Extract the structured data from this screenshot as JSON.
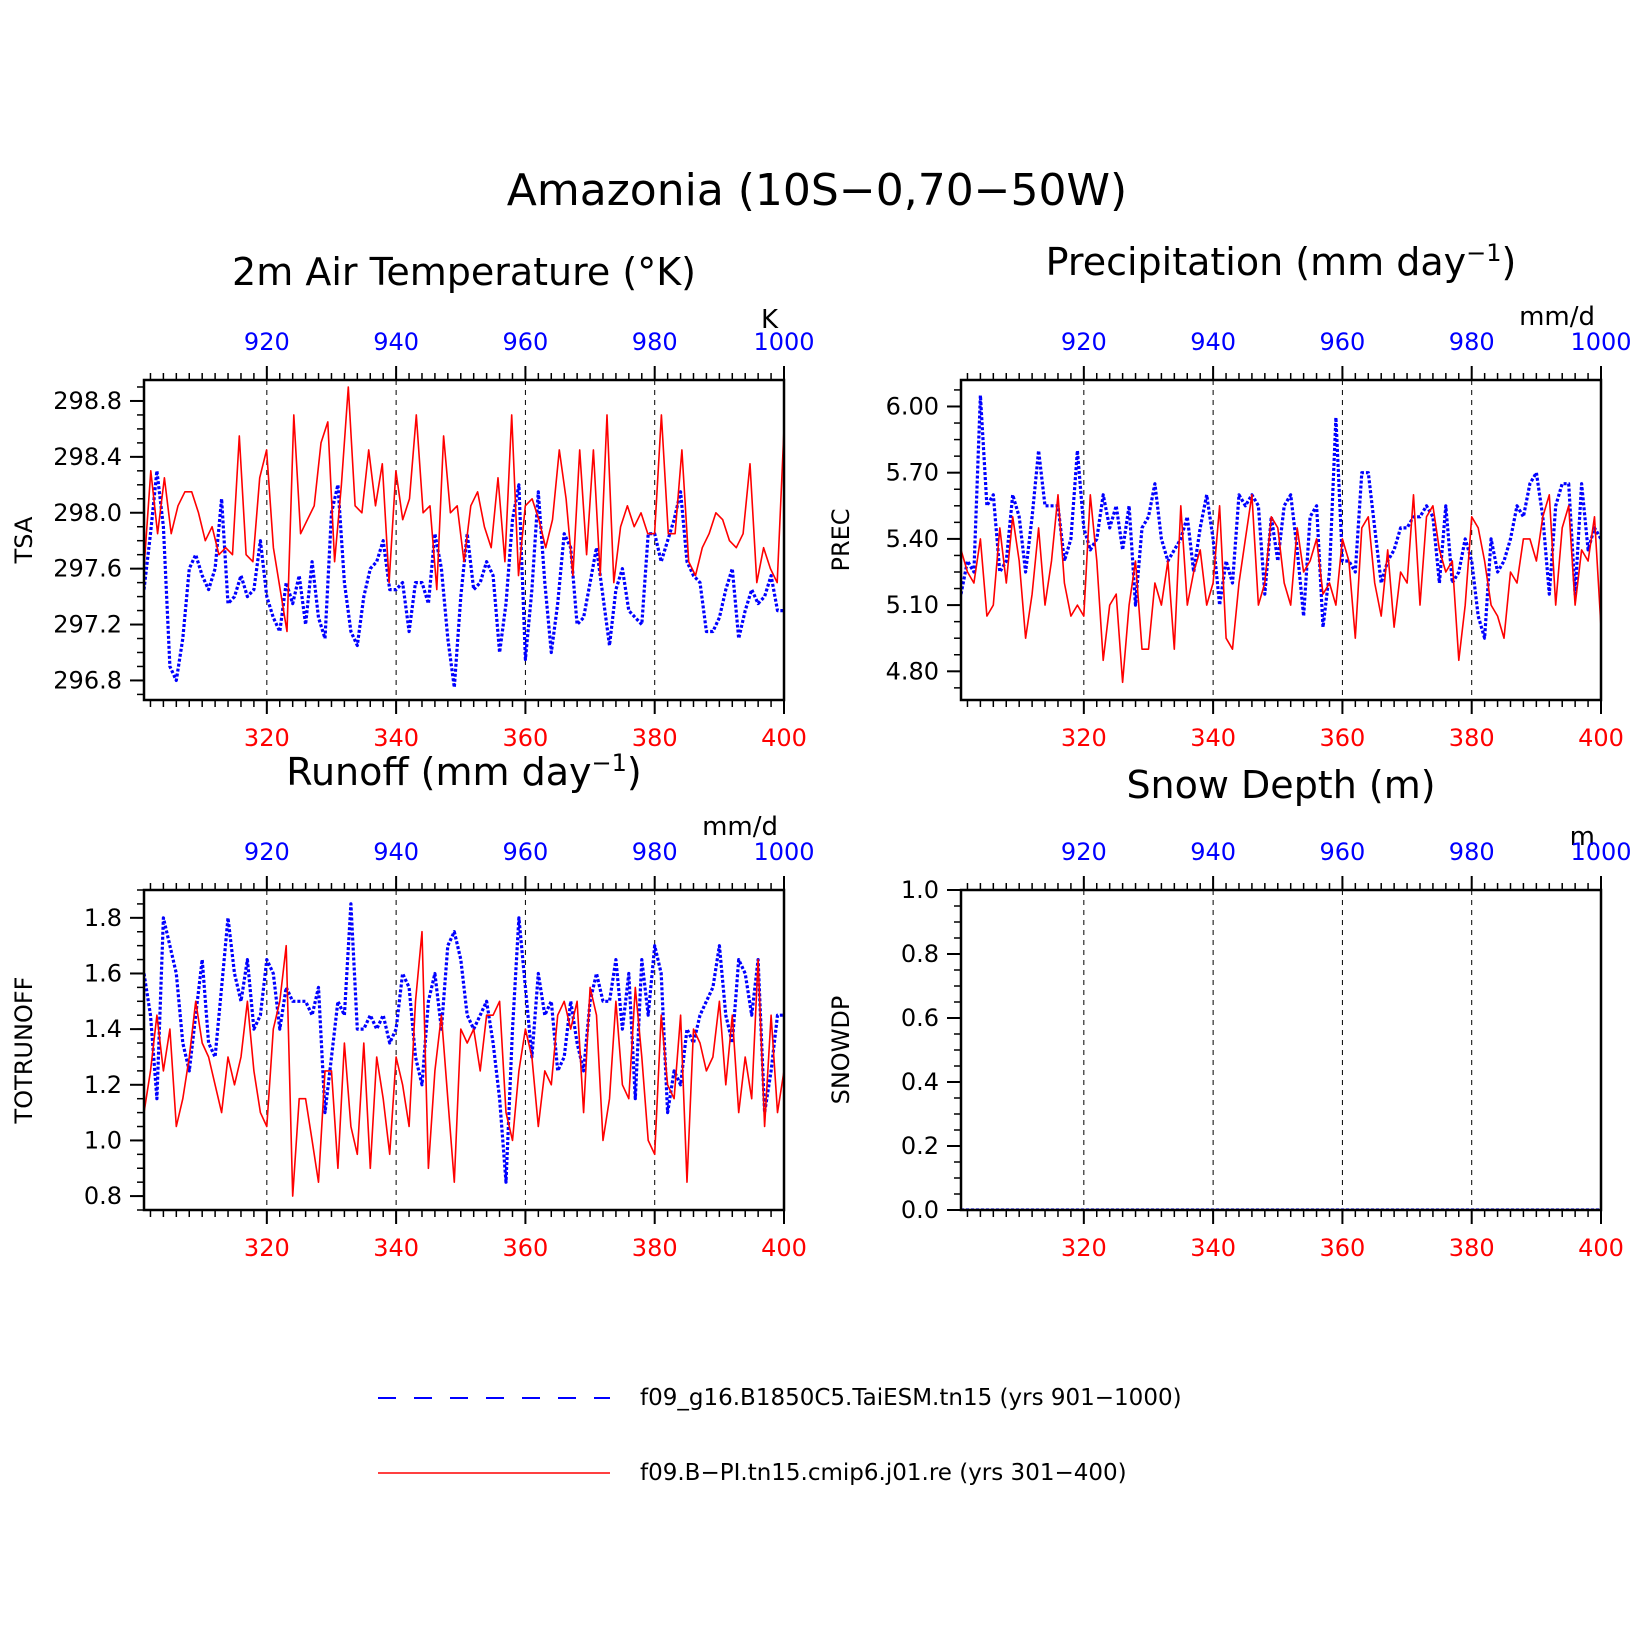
{
  "page": {
    "title": "Amazonia (10S−0,70−50W)"
  },
  "colors": {
    "series_a": "#0000ff",
    "series_b": "#ff0000",
    "axis": "#000000"
  },
  "legend": {
    "entries": [
      {
        "label": "f09_g16.B1850C5.TaiESM.tn15 (yrs 901−1000)",
        "color": "#0000ff",
        "style": "dashed"
      },
      {
        "label": "f09.B−PI.tn15.cmip6.j01.re (yrs 301−400)",
        "color": "#ff0000",
        "style": "solid"
      }
    ]
  },
  "chart_data": [
    {
      "type": "line",
      "title_main": "2m Air Temperature (°K)",
      "ylabel": "TSA",
      "units": "K",
      "ylim": [
        296.66,
        298.95
      ],
      "yticks": [
        296.8,
        297.2,
        297.6,
        298.0,
        298.4,
        298.8
      ],
      "ytick_labels": [
        "296.8",
        "297.2",
        "297.6",
        "298.0",
        "298.4",
        "298.8"
      ],
      "x_bottom": {
        "range": [
          301,
          400
        ],
        "ticks": [
          320,
          340,
          360,
          380,
          400
        ],
        "labels": [
          "320",
          "340",
          "360",
          "380",
          "400"
        ]
      },
      "x_top": {
        "range": [
          901,
          1000
        ],
        "ticks": [
          920,
          940,
          960,
          980,
          1000
        ],
        "labels": [
          "920",
          "940",
          "960",
          "980",
          "1000"
        ]
      },
      "grid": "vertical dashed at major x ticks",
      "series": [
        {
          "color": "#0000ff",
          "style": "dotted",
          "values": [
            297.45,
            297.85,
            298.3,
            297.9,
            296.9,
            296.8,
            297.1,
            297.6,
            297.7,
            297.55,
            297.45,
            297.6,
            298.1,
            297.35,
            297.4,
            297.55,
            297.4,
            297.45,
            297.8,
            297.4,
            297.25,
            297.15,
            297.5,
            297.35,
            297.55,
            297.2,
            297.65,
            297.25,
            297.1,
            298.0,
            298.2,
            297.5,
            297.15,
            297.05,
            297.4,
            297.6,
            297.65,
            297.8,
            297.45,
            297.45,
            297.5,
            297.15,
            297.5,
            297.5,
            297.35,
            297.85,
            297.6,
            297.1,
            296.75,
            297.4,
            297.85,
            297.45,
            297.5,
            297.65,
            297.55,
            297.0,
            297.35,
            297.95,
            298.2,
            296.95,
            297.45,
            298.15,
            297.5,
            297.0,
            297.35,
            297.85,
            297.75,
            297.2,
            297.25,
            297.5,
            297.75,
            297.4,
            297.05,
            297.45,
            297.6,
            297.3,
            297.25,
            297.2,
            297.85,
            297.85,
            297.65,
            297.8,
            297.95,
            298.15,
            297.65,
            297.55,
            297.5,
            297.15,
            297.15,
            297.25,
            297.45,
            297.6,
            297.1,
            297.3,
            297.45,
            297.35,
            297.4,
            297.55,
            297.3,
            297.3
          ]
        },
        {
          "color": "#ff0000",
          "style": "solid",
          "values": [
            297.6,
            298.3,
            297.85,
            298.25,
            297.85,
            298.05,
            298.15,
            298.15,
            298.0,
            297.8,
            297.9,
            297.7,
            297.75,
            297.7,
            298.55,
            297.7,
            297.65,
            298.25,
            298.45,
            297.75,
            297.45,
            297.15,
            298.7,
            297.85,
            297.95,
            298.05,
            298.5,
            298.65,
            297.65,
            298.2,
            298.9,
            298.05,
            298.0,
            298.45,
            298.05,
            298.35,
            297.5,
            298.3,
            297.95,
            298.1,
            298.7,
            298.0,
            298.05,
            297.45,
            298.55,
            298.0,
            298.05,
            297.65,
            298.05,
            298.15,
            297.9,
            297.75,
            298.25,
            297.65,
            298.7,
            297.55,
            298.05,
            298.1,
            297.95,
            297.75,
            297.95,
            298.45,
            298.1,
            297.55,
            298.45,
            297.7,
            298.45,
            297.55,
            298.7,
            297.5,
            297.9,
            298.05,
            297.9,
            298.0,
            297.85,
            297.85,
            298.7,
            297.85,
            297.85,
            298.45,
            297.65,
            297.55,
            297.75,
            297.85,
            298.0,
            297.95,
            297.8,
            297.75,
            297.85,
            298.35,
            297.5,
            297.75,
            297.6,
            297.5,
            298.6
          ]
        }
      ]
    },
    {
      "type": "line",
      "title_main": "Precipitation (mm day",
      "title_sup": "−1",
      "title_end": ")",
      "ylabel": "PREC",
      "units": "mm/d",
      "ylim": [
        4.67,
        6.12
      ],
      "yticks": [
        4.8,
        5.1,
        5.4,
        5.7,
        6.0
      ],
      "ytick_labels": [
        "4.80",
        "5.10",
        "5.40",
        "5.70",
        "6.00"
      ],
      "x_bottom": {
        "range": [
          301,
          400
        ],
        "ticks": [
          320,
          340,
          360,
          380,
          400
        ],
        "labels": [
          "320",
          "340",
          "360",
          "380",
          "400"
        ]
      },
      "x_top": {
        "range": [
          901,
          1000
        ],
        "ticks": [
          920,
          940,
          960,
          980,
          1000
        ],
        "labels": [
          "920",
          "940",
          "960",
          "980",
          "1000"
        ]
      },
      "grid": "vertical dashed at major x ticks",
      "series": [
        {
          "color": "#0000ff",
          "style": "dotted",
          "values": [
            5.15,
            5.3,
            5.25,
            6.05,
            5.55,
            5.6,
            5.25,
            5.3,
            5.6,
            5.5,
            5.25,
            5.5,
            5.8,
            5.55,
            5.55,
            5.55,
            5.3,
            5.4,
            5.8,
            5.45,
            5.35,
            5.4,
            5.6,
            5.45,
            5.55,
            5.35,
            5.55,
            5.1,
            5.45,
            5.5,
            5.65,
            5.4,
            5.3,
            5.35,
            5.4,
            5.5,
            5.25,
            5.45,
            5.6,
            5.4,
            5.1,
            5.3,
            5.2,
            5.6,
            5.55,
            5.6,
            5.55,
            5.15,
            5.5,
            5.3,
            5.55,
            5.6,
            5.35,
            5.05,
            5.5,
            5.55,
            5.0,
            5.25,
            5.95,
            5.3,
            5.3,
            5.25,
            5.7,
            5.7,
            5.45,
            5.2,
            5.3,
            5.35,
            5.45,
            5.45,
            5.5,
            5.5,
            5.55,
            5.5,
            5.2,
            5.55,
            5.2,
            5.25,
            5.4,
            5.3,
            5.05,
            4.95,
            5.4,
            5.25,
            5.3,
            5.4,
            5.55,
            5.5,
            5.65,
            5.7,
            5.5,
            5.15,
            5.55,
            5.65,
            5.65,
            5.15,
            5.65,
            5.35,
            5.45,
            5.4
          ]
        },
        {
          "color": "#ff0000",
          "style": "solid",
          "values": [
            5.35,
            5.25,
            5.2,
            5.4,
            5.05,
            5.1,
            5.45,
            5.2,
            5.5,
            5.3,
            4.95,
            5.15,
            5.45,
            5.1,
            5.3,
            5.6,
            5.2,
            5.05,
            5.1,
            5.05,
            5.6,
            5.3,
            4.85,
            5.1,
            5.15,
            4.75,
            5.1,
            5.3,
            4.9,
            4.9,
            5.2,
            5.1,
            5.3,
            4.9,
            5.55,
            5.1,
            5.25,
            5.35,
            5.1,
            5.2,
            5.55,
            4.95,
            4.9,
            5.2,
            5.4,
            5.6,
            5.1,
            5.2,
            5.5,
            5.45,
            5.2,
            5.1,
            5.45,
            5.25,
            5.3,
            5.4,
            5.15,
            5.2,
            5.1,
            5.4,
            5.3,
            4.95,
            5.45,
            5.5,
            5.2,
            5.05,
            5.35,
            5.0,
            5.25,
            5.2,
            5.6,
            5.1,
            5.5,
            5.55,
            5.35,
            5.25,
            5.3,
            4.85,
            5.1,
            5.5,
            5.45,
            5.3,
            5.1,
            5.05,
            4.95,
            5.25,
            5.2,
            5.4,
            5.4,
            5.3,
            5.5,
            5.6,
            5.1,
            5.45,
            5.55,
            5.1,
            5.35,
            5.3,
            5.5,
            5.0
          ]
        }
      ]
    },
    {
      "type": "line",
      "title_main": "Runoff (mm day",
      "title_sup": "−1",
      "title_end": ")",
      "ylabel": "TOTRUNOFF",
      "units": "mm/d",
      "ylim": [
        0.75,
        1.9
      ],
      "yticks": [
        0.8,
        1.0,
        1.2,
        1.4,
        1.6,
        1.8
      ],
      "ytick_labels": [
        "0.8",
        "1.0",
        "1.2",
        "1.4",
        "1.6",
        "1.8"
      ],
      "x_bottom": {
        "range": [
          301,
          400
        ],
        "ticks": [
          320,
          340,
          360,
          380,
          400
        ],
        "labels": [
          "320",
          "340",
          "360",
          "380",
          "400"
        ]
      },
      "x_top": {
        "range": [
          901,
          1000
        ],
        "ticks": [
          920,
          940,
          960,
          980,
          1000
        ],
        "labels": [
          "920",
          "940",
          "960",
          "980",
          "1000"
        ]
      },
      "grid": "vertical dashed at major x ticks",
      "series": [
        {
          "color": "#0000ff",
          "style": "dotted",
          "values": [
            1.6,
            1.45,
            1.15,
            1.8,
            1.7,
            1.6,
            1.35,
            1.25,
            1.45,
            1.65,
            1.35,
            1.3,
            1.55,
            1.8,
            1.6,
            1.5,
            1.65,
            1.4,
            1.45,
            1.65,
            1.6,
            1.4,
            1.55,
            1.5,
            1.5,
            1.5,
            1.45,
            1.55,
            1.1,
            1.3,
            1.5,
            1.45,
            1.85,
            1.4,
            1.4,
            1.45,
            1.4,
            1.45,
            1.35,
            1.4,
            1.6,
            1.55,
            1.3,
            1.2,
            1.5,
            1.6,
            1.4,
            1.7,
            1.75,
            1.65,
            1.45,
            1.4,
            1.45,
            1.5,
            1.35,
            1.15,
            0.85,
            1.4,
            1.8,
            1.55,
            1.3,
            1.6,
            1.45,
            1.5,
            1.25,
            1.3,
            1.5,
            1.35,
            1.25,
            1.5,
            1.6,
            1.5,
            1.5,
            1.65,
            1.4,
            1.6,
            1.15,
            1.65,
            1.45,
            1.7,
            1.6,
            1.1,
            1.25,
            1.2,
            1.4,
            1.35,
            1.45,
            1.5,
            1.55,
            1.7,
            1.45,
            1.35,
            1.65,
            1.6,
            1.45,
            1.65,
            1.1,
            1.25,
            1.45,
            1.45
          ]
        },
        {
          "color": "#ff0000",
          "style": "solid",
          "values": [
            1.1,
            1.25,
            1.45,
            1.25,
            1.4,
            1.05,
            1.15,
            1.3,
            1.5,
            1.35,
            1.3,
            1.2,
            1.1,
            1.3,
            1.2,
            1.3,
            1.5,
            1.25,
            1.1,
            1.05,
            1.4,
            1.5,
            1.7,
            0.8,
            1.15,
            1.15,
            1.0,
            0.85,
            1.25,
            1.25,
            0.9,
            1.35,
            1.05,
            0.95,
            1.35,
            0.9,
            1.3,
            1.15,
            0.95,
            1.3,
            1.2,
            1.05,
            1.5,
            1.75,
            0.9,
            1.25,
            1.45,
            1.15,
            0.85,
            1.4,
            1.35,
            1.4,
            1.25,
            1.45,
            1.45,
            1.5,
            1.1,
            1.0,
            1.25,
            1.4,
            1.3,
            1.05,
            1.25,
            1.2,
            1.45,
            1.5,
            1.4,
            1.5,
            1.1,
            1.55,
            1.45,
            1.0,
            1.15,
            1.5,
            1.2,
            1.15,
            1.55,
            1.3,
            1.0,
            0.95,
            1.45,
            1.2,
            1.15,
            1.45,
            0.85,
            1.4,
            1.35,
            1.25,
            1.3,
            1.5,
            1.2,
            1.45,
            1.1,
            1.3,
            1.15,
            1.65,
            1.05,
            1.45,
            1.1,
            1.25
          ]
        }
      ]
    },
    {
      "type": "line",
      "title_main": "Snow Depth (m)",
      "ylabel": "SNOWDP",
      "units": "m",
      "ylim": [
        0.0,
        1.0
      ],
      "yticks": [
        0.0,
        0.2,
        0.4,
        0.6,
        0.8,
        1.0
      ],
      "ytick_labels": [
        "0.0",
        "0.2",
        "0.4",
        "0.6",
        "0.8",
        "1.0"
      ],
      "x_bottom": {
        "range": [
          301,
          400
        ],
        "ticks": [
          320,
          340,
          360,
          380,
          400
        ],
        "labels": [
          "320",
          "340",
          "360",
          "380",
          "400"
        ]
      },
      "x_top": {
        "range": [
          901,
          1000
        ],
        "ticks": [
          920,
          940,
          960,
          980,
          1000
        ],
        "labels": [
          "920",
          "940",
          "960",
          "980",
          "1000"
        ]
      },
      "grid": "vertical dashed at major x ticks",
      "series": [
        {
          "color": "#0000ff",
          "style": "dotted",
          "values": [
            0
          ]
        },
        {
          "color": "#ff0000",
          "style": "solid",
          "values": [
            0
          ]
        }
      ]
    }
  ]
}
